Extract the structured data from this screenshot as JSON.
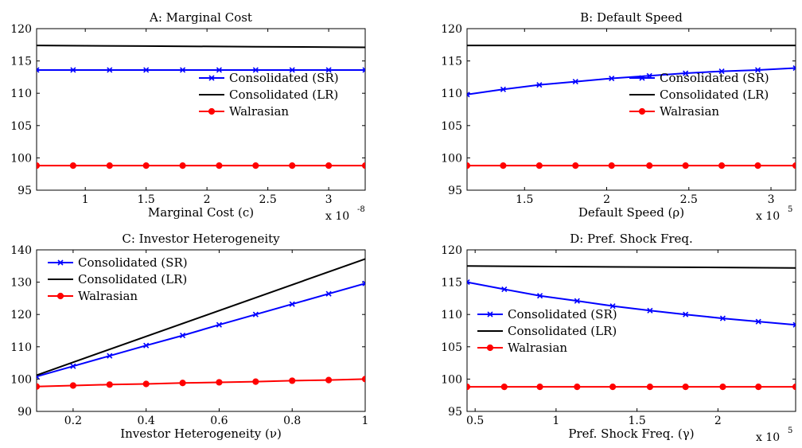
{
  "chart_data": [
    {
      "type": "line",
      "title": "A: Marginal Cost",
      "xlabel": "Marginal Cost (c)",
      "ylabel": "",
      "x_multiplier": "x 10",
      "x_multiplier_exp": "-8",
      "xlim": [
        0.6,
        3.3
      ],
      "ylim": [
        95,
        120
      ],
      "xticks": [
        "1",
        "1.5",
        "2",
        "2.5",
        "3"
      ],
      "xtick_values": [
        1,
        1.5,
        2,
        2.5,
        3
      ],
      "yticks": [
        "95",
        "100",
        "105",
        "110",
        "115",
        "120"
      ],
      "ytick_values": [
        95,
        100,
        105,
        110,
        115,
        120
      ],
      "legend_position": "right",
      "series": [
        {
          "name": "Consolidated (SR)",
          "color": "#0000ff",
          "marker": "x",
          "x": [
            0.6,
            0.9,
            1.2,
            1.5,
            1.8,
            2.1,
            2.4,
            2.7,
            3.0,
            3.3
          ],
          "y": [
            113.6,
            113.6,
            113.6,
            113.6,
            113.6,
            113.6,
            113.6,
            113.6,
            113.6,
            113.6
          ]
        },
        {
          "name": "Consolidated (LR)",
          "color": "#000000",
          "marker": "none",
          "x": [
            0.6,
            1.5,
            2.4,
            3.3
          ],
          "y": [
            117.4,
            117.3,
            117.2,
            117.1
          ]
        },
        {
          "name": "Walrasian",
          "color": "#ff0000",
          "marker": "o",
          "x": [
            0.6,
            0.9,
            1.2,
            1.5,
            1.8,
            2.1,
            2.4,
            2.7,
            3.0,
            3.3
          ],
          "y": [
            98.8,
            98.8,
            98.8,
            98.8,
            98.8,
            98.8,
            98.8,
            98.8,
            98.8,
            98.8
          ]
        }
      ]
    },
    {
      "type": "line",
      "title": "B: Default Speed",
      "xlabel": "Default Speed (ρ)",
      "ylabel": "",
      "x_multiplier": "x 10",
      "x_multiplier_exp": "5",
      "xlim": [
        1.15,
        3.15
      ],
      "ylim": [
        95,
        120
      ],
      "xticks": [
        "1.5",
        "2",
        "2.5",
        "3"
      ],
      "xtick_values": [
        1.5,
        2,
        2.5,
        3
      ],
      "yticks": [
        "95",
        "100",
        "105",
        "110",
        "115",
        "120"
      ],
      "ytick_values": [
        95,
        100,
        105,
        110,
        115,
        120
      ],
      "legend_position": "right",
      "series": [
        {
          "name": "Consolidated (SR)",
          "color": "#0000ff",
          "marker": "x",
          "x": [
            1.15,
            1.37,
            1.59,
            1.81,
            2.03,
            2.26,
            2.48,
            2.7,
            2.92,
            3.15
          ],
          "y": [
            109.8,
            110.6,
            111.3,
            111.8,
            112.3,
            112.7,
            113.1,
            113.4,
            113.6,
            113.9
          ]
        },
        {
          "name": "Consolidated (LR)",
          "color": "#000000",
          "marker": "none",
          "x": [
            1.15,
            3.15
          ],
          "y": [
            117.4,
            117.4
          ]
        },
        {
          "name": "Walrasian",
          "color": "#ff0000",
          "marker": "o",
          "x": [
            1.15,
            1.37,
            1.59,
            1.81,
            2.03,
            2.26,
            2.48,
            2.7,
            2.92,
            3.15
          ],
          "y": [
            98.8,
            98.8,
            98.8,
            98.8,
            98.8,
            98.8,
            98.8,
            98.8,
            98.8,
            98.8
          ]
        }
      ]
    },
    {
      "type": "line",
      "title": "C: Investor Heterogeneity",
      "xlabel": "Investor Heterogeneity (ν)",
      "ylabel": "",
      "x_multiplier": "",
      "x_multiplier_exp": "",
      "xlim": [
        0.1,
        1
      ],
      "ylim": [
        90,
        140
      ],
      "xticks": [
        "0.2",
        "0.4",
        "0.6",
        "0.8",
        "1"
      ],
      "xtick_values": [
        0.2,
        0.4,
        0.6,
        0.8,
        1
      ],
      "yticks": [
        "90",
        "100",
        "110",
        "120",
        "130",
        "140"
      ],
      "ytick_values": [
        90,
        100,
        110,
        120,
        130,
        140
      ],
      "legend_position": "top-left",
      "series": [
        {
          "name": "Consolidated (SR)",
          "color": "#0000ff",
          "marker": "x",
          "x": [
            0.1,
            0.2,
            0.3,
            0.4,
            0.5,
            0.6,
            0.7,
            0.8,
            0.9,
            1.0
          ],
          "y": [
            100.8,
            104.0,
            107.2,
            110.4,
            113.5,
            116.8,
            120.0,
            123.2,
            126.4,
            129.6
          ]
        },
        {
          "name": "Consolidated (LR)",
          "color": "#000000",
          "marker": "none",
          "x": [
            0.1,
            1.0
          ],
          "y": [
            101.2,
            137.2
          ]
        },
        {
          "name": "Walrasian",
          "color": "#ff0000",
          "marker": "o",
          "x": [
            0.1,
            0.2,
            0.3,
            0.4,
            0.5,
            0.6,
            0.7,
            0.8,
            0.9,
            1.0
          ],
          "y": [
            97.7,
            98.0,
            98.3,
            98.5,
            98.8,
            99.0,
            99.2,
            99.5,
            99.7,
            100.0
          ]
        }
      ]
    },
    {
      "type": "line",
      "title": "D: Pref. Shock Freq.",
      "xlabel": "Pref. Shock Freq. (γ)",
      "ylabel": "",
      "x_multiplier": "x 10",
      "x_multiplier_exp": "5",
      "xlim": [
        0.45,
        2.48
      ],
      "ylim": [
        95,
        120
      ],
      "xticks": [
        "0.5",
        "1",
        "1.5",
        "2"
      ],
      "xtick_values": [
        0.5,
        1,
        1.5,
        2
      ],
      "yticks": [
        "95",
        "100",
        "105",
        "110",
        "115",
        "120"
      ],
      "ytick_values": [
        95,
        100,
        105,
        110,
        115,
        120
      ],
      "legend_position": "center-left",
      "series": [
        {
          "name": "Consolidated (SR)",
          "color": "#0000ff",
          "marker": "x",
          "x": [
            0.45,
            0.68,
            0.9,
            1.13,
            1.35,
            1.58,
            1.8,
            2.03,
            2.25,
            2.48
          ],
          "y": [
            115.0,
            113.9,
            112.9,
            112.1,
            111.3,
            110.6,
            110.0,
            109.4,
            108.9,
            108.4
          ]
        },
        {
          "name": "Consolidated (LR)",
          "color": "#000000",
          "marker": "none",
          "x": [
            0.45,
            2.48
          ],
          "y": [
            117.5,
            117.2
          ]
        },
        {
          "name": "Walrasian",
          "color": "#ff0000",
          "marker": "o",
          "x": [
            0.45,
            0.68,
            0.9,
            1.13,
            1.35,
            1.58,
            1.8,
            2.03,
            2.25,
            2.48
          ],
          "y": [
            98.8,
            98.8,
            98.8,
            98.8,
            98.8,
            98.8,
            98.8,
            98.8,
            98.8,
            98.8
          ]
        }
      ]
    }
  ]
}
